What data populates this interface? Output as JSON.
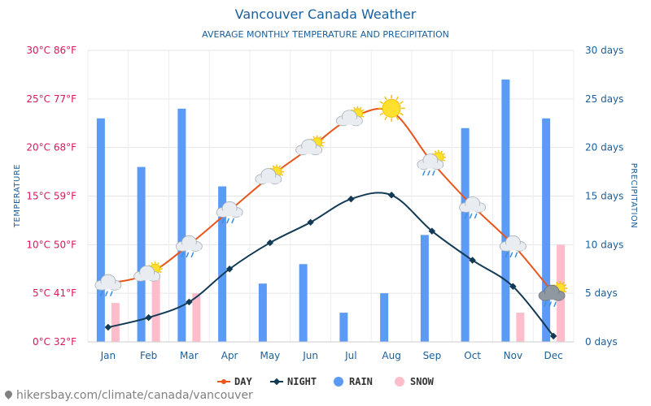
{
  "header": {
    "title": "Vancouver Canada Weather",
    "subtitle": "AVERAGE MONTHLY TEMPERATURE AND PRECIPITATION"
  },
  "footer": {
    "source": "hikersbay.com/climate/canada/vancouver"
  },
  "colors": {
    "day": "#e8561b",
    "night": "#123a55",
    "rain": "#5b9af5",
    "snow": "#ffbccb",
    "left_axis": "#e0135a",
    "right_axis": "#1a5f9c"
  },
  "chart_data": {
    "type": "line",
    "categories": [
      "Jan",
      "Feb",
      "Mar",
      "Apr",
      "May",
      "Jun",
      "Jul",
      "Aug",
      "Sep",
      "Oct",
      "Nov",
      "Dec"
    ],
    "series": [
      {
        "name": "DAY",
        "type": "line",
        "axis": "left",
        "values": [
          6,
          7,
          10,
          13.5,
          17,
          20,
          23,
          23.7,
          18.5,
          14,
          10,
          5
        ]
      },
      {
        "name": "NIGHT",
        "type": "line",
        "axis": "left",
        "values": [
          1.5,
          2.5,
          4.1,
          7.5,
          10.2,
          12.3,
          14.7,
          15.1,
          11.4,
          8.4,
          5.7,
          0.6
        ]
      },
      {
        "name": "RAIN",
        "type": "bar",
        "axis": "right",
        "values": [
          23,
          18,
          24,
          16,
          6,
          8,
          3,
          5,
          11,
          22,
          27,
          23
        ]
      },
      {
        "name": "SNOW",
        "type": "bar",
        "axis": "right",
        "values": [
          4,
          7,
          5,
          0,
          0,
          0,
          0,
          0,
          0,
          0,
          3,
          10
        ]
      }
    ],
    "weather_icons": [
      "rain-cloud-icon",
      "sun-cloud-icon",
      "rain-cloud-icon",
      "rain-cloud-icon",
      "sun-cloud-icon",
      "sun-cloud-icon",
      "sun-cloud-icon",
      "sun-icon",
      "sun-rain-cloud-icon",
      "rain-cloud-icon",
      "rain-cloud-icon",
      "sun-rain-cloud-icon"
    ],
    "left_axis": {
      "title": "TEMPERATURE",
      "ylim": [
        0,
        30
      ],
      "ticks": [
        0,
        5,
        10,
        15,
        20,
        25,
        30
      ],
      "tick_labels": [
        "0°C 32°F",
        "5°C 41°F",
        "10°C 50°F",
        "15°C 59°F",
        "20°C 68°F",
        "25°C 77°F",
        "30°C 86°F"
      ]
    },
    "right_axis": {
      "title": "PRECIPITATION",
      "ylim": [
        0,
        30
      ],
      "ticks": [
        0,
        5,
        10,
        15,
        20,
        25,
        30
      ],
      "tick_labels": [
        "0 days",
        "5 days",
        "10 days",
        "15 days",
        "20 days",
        "25 days",
        "30 days"
      ]
    },
    "legend": [
      "DAY",
      "NIGHT",
      "RAIN",
      "SNOW"
    ],
    "legend_position": "bottom-center",
    "grid": true
  }
}
